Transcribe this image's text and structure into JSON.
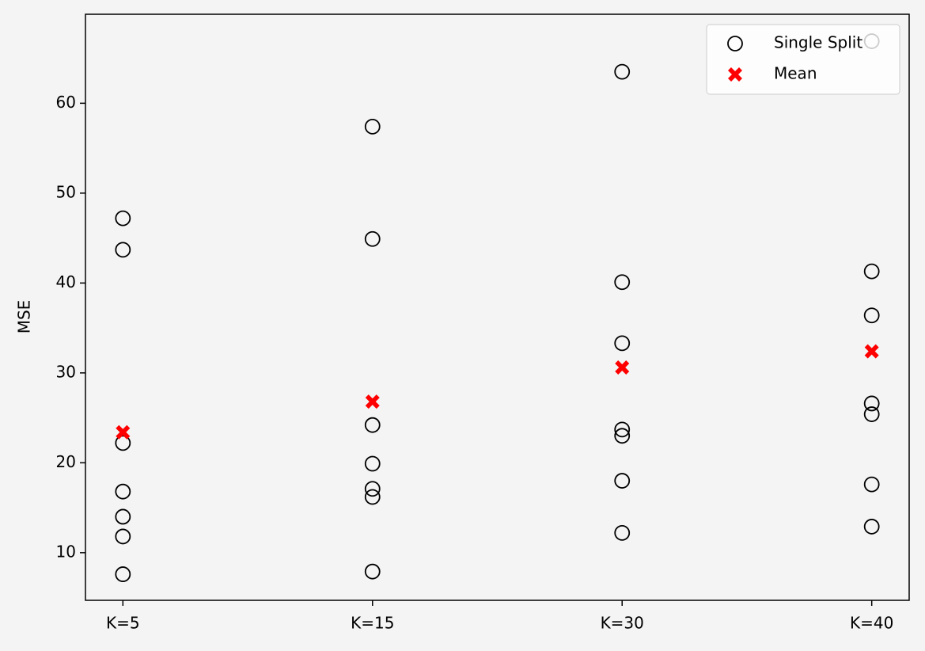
{
  "chart_data": {
    "type": "scatter",
    "ylabel": "MSE",
    "categories": [
      "K=5",
      "K=15",
      "K=30",
      "K=40"
    ],
    "xlim": [
      -0.15,
      3.15
    ],
    "ylim": [
      4.7,
      69.9
    ],
    "yticks": [
      10,
      20,
      30,
      40,
      50,
      60
    ],
    "legend": "upper right",
    "series": [
      {
        "name": "Single Split",
        "color": "#000000",
        "marker": "circle",
        "values": [
          [
            47.2,
            43.7,
            22.2,
            16.8,
            14.0,
            11.8,
            7.6
          ],
          [
            57.4,
            44.9,
            24.2,
            19.9,
            17.1,
            16.2,
            7.9
          ],
          [
            63.5,
            40.1,
            33.3,
            23.7,
            23.0,
            18.0,
            12.2
          ],
          [
            66.9,
            41.3,
            36.4,
            26.6,
            25.4,
            17.6,
            12.9
          ]
        ]
      },
      {
        "name": "Mean",
        "color": "#ff0000",
        "marker": "x",
        "values": [
          23.4,
          26.8,
          30.6,
          32.4
        ]
      }
    ]
  }
}
